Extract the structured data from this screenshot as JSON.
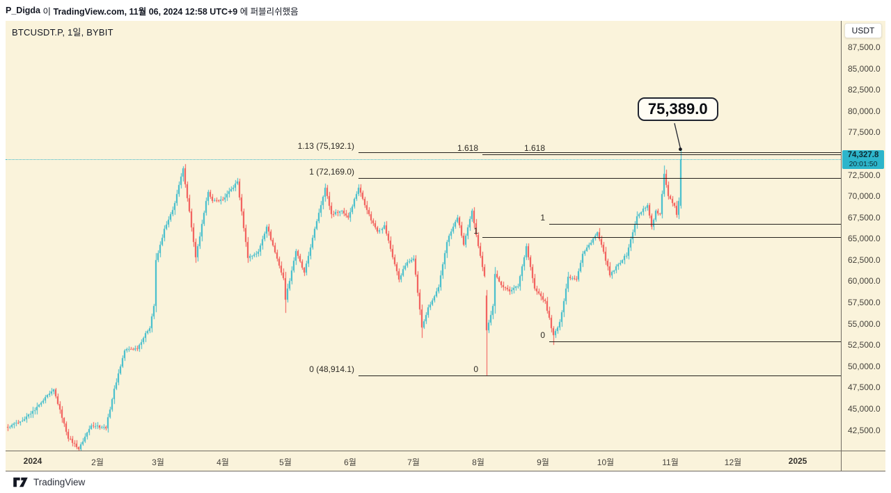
{
  "publish_bar": {
    "username": "P_Digda",
    "particle": " 이 ",
    "source": "TradingView.com, 11월 06, 2024 12:58 UTC+9",
    "suffix": " 에 퍼블리쉬했음"
  },
  "chart_header": {
    "title": "BTCUSDT.P, 1일, BYBIT"
  },
  "price_axis": {
    "currency_button": "USDT",
    "ticks": [
      {
        "label": "87,500.0",
        "value": 87500
      },
      {
        "label": "85,000.0",
        "value": 85000
      },
      {
        "label": "82,500.0",
        "value": 82500
      },
      {
        "label": "80,000.0",
        "value": 80000
      },
      {
        "label": "77,500.0",
        "value": 77500
      },
      {
        "label": "75,000.0",
        "value": 75000
      },
      {
        "label": "72,500.0",
        "value": 72500
      },
      {
        "label": "70,000.0",
        "value": 70000
      },
      {
        "label": "67,500.0",
        "value": 67500
      },
      {
        "label": "65,000.0",
        "value": 65000
      },
      {
        "label": "62,500.0",
        "value": 62500
      },
      {
        "label": "60,000.0",
        "value": 60000
      },
      {
        "label": "57,500.0",
        "value": 57500
      },
      {
        "label": "55,000.0",
        "value": 55000
      },
      {
        "label": "52,500.0",
        "value": 52500
      },
      {
        "label": "50,000.0",
        "value": 50000
      },
      {
        "label": "47,500.0",
        "value": 47500
      },
      {
        "label": "45,000.0",
        "value": 45000
      },
      {
        "label": "42,500.0",
        "value": 42500
      }
    ],
    "last_price_label": {
      "price": "74,327.8",
      "countdown": "20:01:50"
    }
  },
  "time_axis": {
    "labels": [
      {
        "text": "2024",
        "date": "2024-01-01",
        "bold": true
      },
      {
        "text": "2월",
        "date": "2024-02-01",
        "bold": false
      },
      {
        "text": "3월",
        "date": "2024-03-01",
        "bold": false
      },
      {
        "text": "4월",
        "date": "2024-04-01",
        "bold": false
      },
      {
        "text": "5월",
        "date": "2024-05-01",
        "bold": false
      },
      {
        "text": "6월",
        "date": "2024-06-01",
        "bold": false
      },
      {
        "text": "7월",
        "date": "2024-07-01",
        "bold": false
      },
      {
        "text": "8월",
        "date": "2024-08-01",
        "bold": false
      },
      {
        "text": "9월",
        "date": "2024-09-01",
        "bold": false
      },
      {
        "text": "10월",
        "date": "2024-10-01",
        "bold": false
      },
      {
        "text": "11월",
        "date": "2024-11-01",
        "bold": false
      },
      {
        "text": "12월",
        "date": "2024-12-01",
        "bold": false
      },
      {
        "text": "2025",
        "date": "2025-01-01",
        "bold": true
      }
    ]
  },
  "callout": {
    "text": "75,389.0",
    "date": "2024-11-06",
    "price": 75389.0
  },
  "footer": {
    "brand": "TradingView"
  },
  "colors": {
    "pane_background": "#faf3db",
    "candle_up": "#33b8cb",
    "candle_down": "#f0504e",
    "fib_line": "#23201b",
    "current_price": "#35b6c9",
    "badge_background": "#2db5cb",
    "separator": "#6f6a61",
    "axis_text": "#45423c"
  },
  "chart_data": {
    "type": "candlestick",
    "symbol": "BTCUSDT.P",
    "exchange": "BYBIT",
    "interval": "1일",
    "last_price": 74327.8,
    "countdown": "20:01:50",
    "visible_start": "2023-12-20",
    "visible_end": "2024-11-06",
    "y_axis_range": [
      40500,
      89000
    ],
    "price_path": [
      {
        "d": "2023-12-20",
        "p": 42900
      },
      {
        "d": "2023-12-27",
        "p": 43600
      },
      {
        "d": "2024-01-02",
        "p": 44900
      },
      {
        "d": "2024-01-08",
        "p": 46500
      },
      {
        "d": "2024-01-11",
        "p": 47200
      },
      {
        "d": "2024-01-18",
        "p": 41600
      },
      {
        "d": "2024-01-23",
        "p": 40300
      },
      {
        "d": "2024-01-29",
        "p": 43100
      },
      {
        "d": "2024-02-05",
        "p": 42800
      },
      {
        "d": "2024-02-09",
        "p": 47300
      },
      {
        "d": "2024-02-14",
        "p": 51900
      },
      {
        "d": "2024-02-20",
        "p": 52100
      },
      {
        "d": "2024-02-26",
        "p": 54600
      },
      {
        "d": "2024-02-28",
        "p": 57100
      },
      {
        "d": "2024-02-29",
        "p": 62400
      },
      {
        "d": "2024-03-04",
        "p": 66100
      },
      {
        "d": "2024-03-08",
        "p": 68300
      },
      {
        "d": "2024-03-13",
        "p": 73200
      },
      {
        "d": "2024-03-16",
        "p": 68200
      },
      {
        "d": "2024-03-19",
        "p": 62700
      },
      {
        "d": "2024-03-20",
        "p": 64000
      },
      {
        "d": "2024-03-25",
        "p": 70600
      },
      {
        "d": "2024-03-27",
        "p": 69400
      },
      {
        "d": "2024-04-01",
        "p": 69600
      },
      {
        "d": "2024-04-08",
        "p": 71700
      },
      {
        "d": "2024-04-13",
        "p": 62800
      },
      {
        "d": "2024-04-18",
        "p": 63400
      },
      {
        "d": "2024-04-22",
        "p": 66500
      },
      {
        "d": "2024-04-30",
        "p": 60300
      },
      {
        "d": "2024-05-01",
        "p": 57900
      },
      {
        "d": "2024-05-06",
        "p": 63600
      },
      {
        "d": "2024-05-10",
        "p": 60900
      },
      {
        "d": "2024-05-15",
        "p": 66100
      },
      {
        "d": "2024-05-20",
        "p": 71000
      },
      {
        "d": "2024-05-23",
        "p": 67900
      },
      {
        "d": "2024-05-28",
        "p": 68300
      },
      {
        "d": "2024-05-31",
        "p": 67500
      },
      {
        "d": "2024-06-05",
        "p": 71000
      },
      {
        "d": "2024-06-11",
        "p": 67200
      },
      {
        "d": "2024-06-14",
        "p": 65900
      },
      {
        "d": "2024-06-17",
        "p": 66500
      },
      {
        "d": "2024-06-24",
        "p": 60200
      },
      {
        "d": "2024-06-27",
        "p": 61900
      },
      {
        "d": "2024-07-01",
        "p": 62800
      },
      {
        "d": "2024-07-05",
        "p": 54600
      },
      {
        "d": "2024-07-08",
        "p": 56800
      },
      {
        "d": "2024-07-13",
        "p": 59200
      },
      {
        "d": "2024-07-17",
        "p": 64700
      },
      {
        "d": "2024-07-22",
        "p": 67500
      },
      {
        "d": "2024-07-25",
        "p": 64300
      },
      {
        "d": "2024-07-29",
        "p": 68200
      },
      {
        "d": "2024-08-02",
        "p": 62900
      },
      {
        "d": "2024-08-04",
        "p": 60700
      },
      {
        "d": "2024-08-05",
        "p": 54200
      },
      {
        "d": "2024-08-08",
        "p": 57000
      },
      {
        "d": "2024-08-09",
        "p": 60800
      },
      {
        "d": "2024-08-13",
        "p": 59300
      },
      {
        "d": "2024-08-16",
        "p": 58900
      },
      {
        "d": "2024-08-20",
        "p": 59400
      },
      {
        "d": "2024-08-24",
        "p": 64100
      },
      {
        "d": "2024-08-28",
        "p": 59100
      },
      {
        "d": "2024-09-02",
        "p": 57600
      },
      {
        "d": "2024-09-06",
        "p": 53600
      },
      {
        "d": "2024-09-09",
        "p": 55100
      },
      {
        "d": "2024-09-13",
        "p": 60500
      },
      {
        "d": "2024-09-17",
        "p": 60300
      },
      {
        "d": "2024-09-20",
        "p": 63200
      },
      {
        "d": "2024-09-27",
        "p": 65700
      },
      {
        "d": "2024-09-30",
        "p": 63400
      },
      {
        "d": "2024-10-03",
        "p": 60700
      },
      {
        "d": "2024-10-08",
        "p": 62300
      },
      {
        "d": "2024-10-11",
        "p": 63100
      },
      {
        "d": "2024-10-16",
        "p": 67600
      },
      {
        "d": "2024-10-21",
        "p": 69000
      },
      {
        "d": "2024-10-23",
        "p": 66400
      },
      {
        "d": "2024-10-25",
        "p": 68200
      },
      {
        "d": "2024-10-27",
        "p": 67800
      },
      {
        "d": "2024-10-29",
        "p": 72600
      },
      {
        "d": "2024-10-31",
        "p": 70100
      },
      {
        "d": "2024-11-03",
        "p": 68900
      },
      {
        "d": "2024-11-04",
        "p": 67900
      },
      {
        "d": "2024-11-05",
        "p": 69400
      },
      {
        "d": "2024-11-06",
        "p": 74327.8
      }
    ],
    "candle_overrides": {
      "2024-01-23": {
        "low": 40000
      },
      "2024-03-14": {
        "high": 73800
      },
      "2024-05-01": {
        "low": 56300
      },
      "2024-07-05": {
        "low": 53300
      },
      "2024-08-05": {
        "open": 58300,
        "low": 48914.1
      },
      "2024-09-06": {
        "low": 52550
      },
      "2024-10-29": {
        "high": 73600
      },
      "2024-11-06": {
        "open": 68900,
        "low": 68500,
        "high": 75389,
        "close": 74327.8
      }
    },
    "fib_drawings": [
      {
        "name": "fib-retracement-main",
        "start_date": "2024-06-05",
        "levels": [
          {
            "label": "1.13 (75,192.1)",
            "price": 75192.1
          },
          {
            "label": "1 (72,169.0)",
            "price": 72169.0
          },
          {
            "label": "0 (48,914.1)",
            "price": 48914.1
          }
        ]
      },
      {
        "name": "fib-extension-august",
        "start_date": "2024-08-03",
        "levels": [
          {
            "label": "1.618",
            "price": 74900
          },
          {
            "label": "1",
            "price": 65150
          },
          {
            "label": "0",
            "price": 48950
          }
        ]
      },
      {
        "name": "fib-extension-september",
        "start_date": "2024-09-04",
        "levels": [
          {
            "label": "1.618",
            "price": 74940
          },
          {
            "label": "1",
            "price": 66700
          },
          {
            "label": "0",
            "price": 52900
          }
        ]
      }
    ]
  }
}
